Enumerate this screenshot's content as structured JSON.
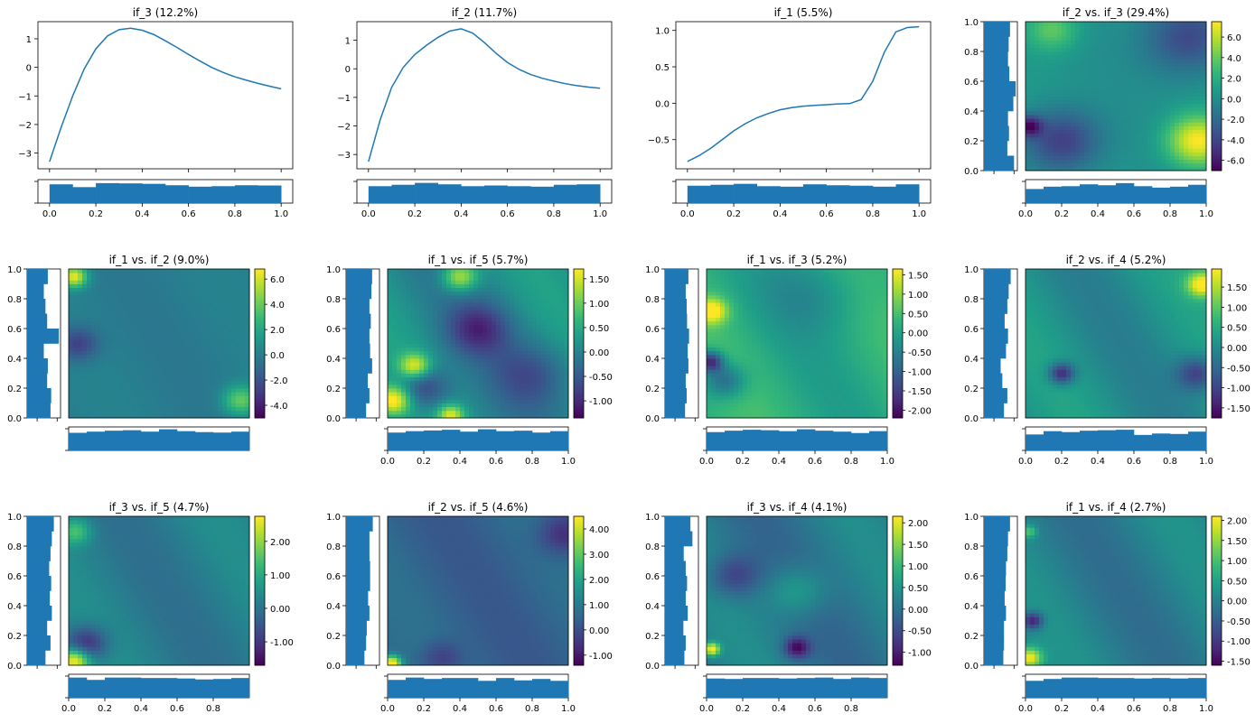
{
  "figure": {
    "colormap": "viridis",
    "hist_color": "#1f77b4",
    "line_color": "#1f77b4"
  },
  "chart_data": [
    {
      "type": "line",
      "title": "if_3 (12.2%)",
      "x": [
        0,
        0.05,
        0.1,
        0.15,
        0.2,
        0.25,
        0.3,
        0.35,
        0.4,
        0.45,
        0.5,
        0.55,
        0.6,
        0.65,
        0.7,
        0.75,
        0.8,
        0.85,
        0.9,
        0.95,
        1.0
      ],
      "y": [
        -3.3,
        -2.1,
        -1.0,
        -0.05,
        0.65,
        1.1,
        1.32,
        1.37,
        1.3,
        1.15,
        0.93,
        0.7,
        0.45,
        0.22,
        0.0,
        -0.18,
        -0.33,
        -0.45,
        -0.56,
        -0.66,
        -0.75
      ],
      "xlim": [
        -0.05,
        1.05
      ],
      "ylim": [
        -3.55,
        1.6
      ],
      "xticks": [
        "0.0",
        "0.2",
        "0.4",
        "0.6",
        "0.8",
        "1.0"
      ],
      "xtick_values": [
        0,
        0.2,
        0.4,
        0.6,
        0.8,
        1.0
      ],
      "yticks": [
        "−3",
        "−2",
        "−1",
        "0",
        "1"
      ],
      "ytick_values": [
        -3,
        -2,
        -1,
        0,
        1
      ],
      "hist": [
        0.8,
        0.68,
        0.85,
        0.84,
        0.82,
        0.76,
        0.7,
        0.72,
        0.76,
        0.75
      ]
    },
    {
      "type": "line",
      "title": "if_2 (11.7%)",
      "x": [
        0,
        0.05,
        0.1,
        0.15,
        0.2,
        0.25,
        0.3,
        0.35,
        0.4,
        0.45,
        0.5,
        0.55,
        0.6,
        0.65,
        0.7,
        0.75,
        0.8,
        0.85,
        0.9,
        0.95,
        1.0
      ],
      "y": [
        -3.25,
        -1.8,
        -0.65,
        0.05,
        0.5,
        0.82,
        1.1,
        1.32,
        1.4,
        1.25,
        0.92,
        0.55,
        0.22,
        -0.02,
        -0.2,
        -0.33,
        -0.43,
        -0.52,
        -0.59,
        -0.64,
        -0.68
      ],
      "xlim": [
        -0.05,
        1.05
      ],
      "ylim": [
        -3.5,
        1.65
      ],
      "xticks": [
        "0.0",
        "0.2",
        "0.4",
        "0.6",
        "0.8",
        "1.0"
      ],
      "xtick_values": [
        0,
        0.2,
        0.4,
        0.6,
        0.8,
        1.0
      ],
      "yticks": [
        "−3",
        "−2",
        "−1",
        "0",
        "1"
      ],
      "ytick_values": [
        -3,
        -2,
        -1,
        0,
        1
      ],
      "hist": [
        0.72,
        0.78,
        0.86,
        0.8,
        0.72,
        0.75,
        0.72,
        0.7,
        0.78,
        0.8
      ]
    },
    {
      "type": "line",
      "title": "if_1 (5.5%)",
      "x": [
        0,
        0.05,
        0.1,
        0.15,
        0.2,
        0.25,
        0.3,
        0.35,
        0.4,
        0.45,
        0.5,
        0.55,
        0.6,
        0.65,
        0.7,
        0.75,
        0.8,
        0.85,
        0.9,
        0.95,
        1.0
      ],
      "y": [
        -0.8,
        -0.72,
        -0.62,
        -0.5,
        -0.38,
        -0.28,
        -0.2,
        -0.14,
        -0.09,
        -0.06,
        -0.04,
        -0.03,
        -0.02,
        -0.01,
        -0.005,
        0.05,
        0.3,
        0.7,
        0.98,
        1.04,
        1.05
      ],
      "xlim": [
        -0.05,
        1.05
      ],
      "ylim": [
        -0.9,
        1.12
      ],
      "xticks": [
        "0.0",
        "0.2",
        "0.4",
        "0.6",
        "0.8",
        "1.0"
      ],
      "xtick_values": [
        0,
        0.2,
        0.4,
        0.6,
        0.8,
        1.0
      ],
      "yticks": [
        "−0.5",
        "0.0",
        "0.5",
        "1.0"
      ],
      "ytick_values": [
        -0.5,
        0,
        0.5,
        1.0
      ],
      "hist": [
        0.74,
        0.78,
        0.82,
        0.72,
        0.7,
        0.8,
        0.76,
        0.74,
        0.7,
        0.8
      ]
    },
    {
      "type": "heatmap",
      "title": "if_2 vs. if_3 (29.4%)",
      "colorbar_ticks": [
        "-6.0",
        "-4.0",
        "-2.0",
        "0.0",
        "2.0",
        "4.0",
        "6.0"
      ],
      "colorbar_values": [
        -6,
        -4,
        -2,
        0,
        2,
        4,
        6
      ],
      "colorbar_range": [
        -7.0,
        7.5
      ],
      "xticks": [
        "0.0",
        "0.2",
        "0.4",
        "0.6",
        "0.8",
        "1.0"
      ],
      "yticks": [
        "0.0",
        "0.2",
        "0.4",
        "0.6",
        "0.8",
        "1.0"
      ],
      "hist_x": [
        0.6,
        0.7,
        0.72,
        0.8,
        0.76,
        0.85,
        0.72,
        0.66,
        0.7,
        0.78
      ],
      "hist_y": [
        0.9,
        0.7,
        0.75,
        0.72,
        0.88,
        0.95,
        0.76,
        0.72,
        0.74,
        0.78
      ],
      "features": [
        {
          "x": 0.95,
          "y": 0.2,
          "s": 0.12,
          "a": 7.0
        },
        {
          "x": 0.15,
          "y": 0.95,
          "s": 0.1,
          "a": 3.5
        },
        {
          "x": 0.2,
          "y": 0.2,
          "s": 0.15,
          "a": -5.0
        },
        {
          "x": 0.9,
          "y": 0.9,
          "s": 0.18,
          "a": -4.5
        },
        {
          "x": 0.02,
          "y": 0.3,
          "s": 0.05,
          "a": -6.0
        }
      ],
      "base": 0.5
    },
    {
      "type": "heatmap",
      "title": "if_1 vs. if_2 (9.0%)",
      "colorbar_ticks": [
        "-4.0",
        "-2.0",
        "0.0",
        "2.0",
        "4.0",
        "6.0"
      ],
      "colorbar_values": [
        -4,
        -2,
        0,
        2,
        4,
        6
      ],
      "colorbar_range": [
        -5.0,
        6.8
      ],
      "xticks": [],
      "yticks": [
        "0.0",
        "0.2",
        "0.4",
        "0.6",
        "0.8",
        "1.0"
      ],
      "hist_x": [
        0.75,
        0.8,
        0.84,
        0.86,
        0.8,
        0.9,
        0.82,
        0.78,
        0.76,
        0.8
      ],
      "hist_y": [
        0.7,
        0.72,
        0.6,
        0.62,
        0.5,
        0.95,
        0.6,
        0.55,
        0.5,
        0.62
      ],
      "features": [
        {
          "x": 0.03,
          "y": 0.95,
          "s": 0.05,
          "a": 6.5
        },
        {
          "x": 0.95,
          "y": 0.12,
          "s": 0.07,
          "a": 4.0
        },
        {
          "x": 0.05,
          "y": 0.5,
          "s": 0.08,
          "a": -3.0
        }
      ],
      "base": 0.0
    },
    {
      "type": "heatmap",
      "title": "if_1 vs. if_5 (5.7%)",
      "colorbar_ticks": [
        "-1.00",
        "-0.50",
        "0.00",
        "0.50",
        "1.00",
        "1.50"
      ],
      "colorbar_values": [
        -1,
        -0.5,
        0,
        0.5,
        1,
        1.5
      ],
      "colorbar_range": [
        -1.35,
        1.7
      ],
      "xticks": [
        "0.0",
        "0.2",
        "0.4",
        "0.6",
        "0.8",
        "1.0"
      ],
      "yticks": [
        "0.0",
        "0.2",
        "0.4",
        "0.6",
        "0.8",
        "1.0"
      ],
      "hist_x": [
        0.76,
        0.82,
        0.85,
        0.88,
        0.8,
        0.9,
        0.82,
        0.84,
        0.76,
        0.82
      ],
      "hist_y": [
        0.6,
        0.7,
        0.65,
        0.78,
        0.72,
        0.7,
        0.74,
        0.7,
        0.76,
        0.78
      ],
      "features": [
        {
          "x": 0.03,
          "y": 0.12,
          "s": 0.07,
          "a": 1.7
        },
        {
          "x": 0.15,
          "y": 0.35,
          "s": 0.06,
          "a": 1.4
        },
        {
          "x": 0.4,
          "y": 0.95,
          "s": 0.07,
          "a": 1.4
        },
        {
          "x": 0.35,
          "y": 0.02,
          "s": 0.05,
          "a": 1.3
        },
        {
          "x": 0.2,
          "y": 0.2,
          "s": 0.1,
          "a": -1.0
        },
        {
          "x": 0.5,
          "y": 0.6,
          "s": 0.12,
          "a": -0.9
        },
        {
          "x": 0.8,
          "y": 0.3,
          "s": 0.15,
          "a": -0.6
        }
      ],
      "base": 0.1
    },
    {
      "type": "heatmap",
      "title": "if_1 vs. if_3 (5.2%)",
      "colorbar_ticks": [
        "-2.00",
        "-1.50",
        "-1.00",
        "-0.50",
        "0.00",
        "0.50",
        "1.00",
        "1.50"
      ],
      "colorbar_values": [
        -2,
        -1.5,
        -1,
        -0.5,
        0,
        0.5,
        1,
        1.5
      ],
      "colorbar_range": [
        -2.2,
        1.65
      ],
      "xticks": [
        "0.0",
        "0.2",
        "0.4",
        "0.6",
        "0.8",
        "1.0"
      ],
      "yticks": [
        "0.0",
        "0.2",
        "0.4",
        "0.6",
        "0.8",
        "1.0"
      ],
      "hist_x": [
        0.78,
        0.84,
        0.88,
        0.86,
        0.82,
        0.9,
        0.84,
        0.8,
        0.74,
        0.82
      ],
      "hist_y": [
        0.6,
        0.65,
        0.62,
        0.7,
        0.68,
        0.72,
        0.66,
        0.65,
        0.62,
        0.7
      ],
      "features": [
        {
          "x": 0.03,
          "y": 0.72,
          "s": 0.06,
          "a": 1.6
        },
        {
          "x": 0.02,
          "y": 0.38,
          "s": 0.05,
          "a": -2.1
        },
        {
          "x": 0.1,
          "y": 0.25,
          "s": 0.08,
          "a": -1.2
        },
        {
          "x": 0.6,
          "y": 0.85,
          "s": 0.2,
          "a": -0.5
        }
      ],
      "base": 0.2
    },
    {
      "type": "heatmap",
      "title": "if_2 vs. if_4 (5.2%)",
      "colorbar_ticks": [
        "-1.50",
        "-1.00",
        "-0.50",
        "0.00",
        "0.50",
        "1.00",
        "1.50"
      ],
      "colorbar_values": [
        -1.5,
        -1,
        -0.5,
        0,
        0.5,
        1,
        1.5
      ],
      "colorbar_range": [
        -1.75,
        1.95
      ],
      "xticks": [
        "0.0",
        "0.2",
        "0.4",
        "0.6",
        "0.8",
        "1.0"
      ],
      "yticks": [
        "0.0",
        "0.2",
        "0.4",
        "0.6",
        "0.8",
        "1.0"
      ],
      "hist_x": [
        0.68,
        0.82,
        0.78,
        0.84,
        0.86,
        0.88,
        0.66,
        0.72,
        0.7,
        0.8
      ],
      "hist_y": [
        0.6,
        0.7,
        0.55,
        0.5,
        0.66,
        0.72,
        0.62,
        0.7,
        0.74,
        0.8
      ],
      "features": [
        {
          "x": 0.98,
          "y": 0.9,
          "s": 0.06,
          "a": 1.9
        },
        {
          "x": 0.2,
          "y": 0.3,
          "s": 0.05,
          "a": -1.6
        },
        {
          "x": 0.95,
          "y": 0.3,
          "s": 0.08,
          "a": -1.2
        }
      ],
      "base": 0.1
    },
    {
      "type": "heatmap",
      "title": "if_3 vs. if_5 (4.7%)",
      "colorbar_ticks": [
        "-1.00",
        "0.00",
        "1.00",
        "2.00"
      ],
      "colorbar_values": [
        -1,
        0,
        1,
        2
      ],
      "colorbar_range": [
        -1.7,
        2.75
      ],
      "xticks": [
        "0.0",
        "0.2",
        "0.4",
        "0.6",
        "0.8"
      ],
      "yticks": [
        "0.0",
        "0.2",
        "0.4",
        "0.6",
        "0.8",
        "1.0"
      ],
      "hist_x": [
        0.86,
        0.76,
        0.86,
        0.86,
        0.84,
        0.84,
        0.82,
        0.78,
        0.8,
        0.84
      ],
      "hist_y": [
        0.55,
        0.7,
        0.6,
        0.74,
        0.68,
        0.72,
        0.66,
        0.7,
        0.74,
        0.8
      ],
      "features": [
        {
          "x": 0.03,
          "y": 0.03,
          "s": 0.06,
          "a": 2.7
        },
        {
          "x": 0.1,
          "y": 0.15,
          "s": 0.08,
          "a": -1.5
        },
        {
          "x": 0.04,
          "y": 0.9,
          "s": 0.06,
          "a": 1.2
        }
      ],
      "base": 0.2
    },
    {
      "type": "heatmap",
      "title": "if_2 vs. if_5 (4.6%)",
      "colorbar_ticks": [
        "-1.00",
        "0.00",
        "1.00",
        "2.00",
        "3.00",
        "4.00"
      ],
      "colorbar_values": [
        -1,
        0,
        1,
        2,
        3,
        4
      ],
      "colorbar_range": [
        -1.4,
        4.5
      ],
      "xticks": [
        "0.0",
        "0.2",
        "0.4",
        "0.6",
        "0.8",
        "1.0"
      ],
      "yticks": [
        "0.0",
        "0.2",
        "0.4",
        "0.6",
        "0.8",
        "1.0"
      ],
      "hist_x": [
        0.76,
        0.86,
        0.8,
        0.84,
        0.84,
        0.72,
        0.84,
        0.74,
        0.8,
        0.72
      ],
      "hist_y": [
        0.55,
        0.6,
        0.62,
        0.7,
        0.66,
        0.72,
        0.72,
        0.7,
        0.7,
        0.8
      ],
      "features": [
        {
          "x": 0.02,
          "y": 0.01,
          "s": 0.04,
          "a": 4.5
        },
        {
          "x": 0.97,
          "y": 0.88,
          "s": 0.1,
          "a": -1.3
        },
        {
          "x": 0.3,
          "y": 0.05,
          "s": 0.08,
          "a": -1.0
        }
      ],
      "base": 0.5
    },
    {
      "type": "heatmap",
      "title": "if_3 vs. if_4 (4.1%)",
      "colorbar_ticks": [
        "-1.00",
        "-0.50",
        "0.00",
        "0.50",
        "1.00",
        "1.50",
        "2.00"
      ],
      "colorbar_values": [
        -1,
        -0.5,
        0,
        0.5,
        1,
        1.5,
        2
      ],
      "colorbar_range": [
        -1.3,
        2.15
      ],
      "xticks": [
        "0.0",
        "0.2",
        "0.4",
        "0.6",
        "0.8"
      ],
      "yticks": [
        "0.0",
        "0.2",
        "0.4",
        "0.6",
        "0.8",
        "1.0"
      ],
      "hist_x": [
        0.82,
        0.8,
        0.84,
        0.84,
        0.82,
        0.84,
        0.86,
        0.8,
        0.86,
        0.84
      ],
      "hist_y": [
        0.58,
        0.62,
        0.55,
        0.68,
        0.62,
        0.66,
        0.62,
        0.56,
        0.82,
        0.76
      ],
      "features": [
        {
          "x": 0.03,
          "y": 0.11,
          "s": 0.03,
          "a": 2.1
        },
        {
          "x": 0.5,
          "y": 0.12,
          "s": 0.05,
          "a": -1.3
        },
        {
          "x": 0.15,
          "y": 0.6,
          "s": 0.1,
          "a": -0.8
        },
        {
          "x": 0.5,
          "y": 0.5,
          "s": 0.12,
          "a": 0.7
        }
      ],
      "base": 0.1
    },
    {
      "type": "heatmap",
      "title": "if_1 vs. if_4 (2.7%)",
      "colorbar_ticks": [
        "-1.50",
        "-1.00",
        "-0.50",
        "0.00",
        "0.50",
        "1.00",
        "1.50",
        "2.00"
      ],
      "colorbar_values": [
        -1.5,
        -1,
        -0.5,
        0,
        0.5,
        1,
        1.5,
        2
      ],
      "colorbar_range": [
        -1.6,
        2.1
      ],
      "xticks": [
        "0.0",
        "0.2",
        "0.4",
        "0.6",
        "0.8",
        "1.0"
      ],
      "yticks": [
        "0.0",
        "0.2",
        "0.4",
        "0.6",
        "0.8",
        "1.0"
      ],
      "hist_x": [
        0.72,
        0.8,
        0.86,
        0.86,
        0.84,
        0.84,
        0.82,
        0.84,
        0.82,
        0.84
      ],
      "hist_y": [
        0.58,
        0.6,
        0.6,
        0.66,
        0.62,
        0.65,
        0.66,
        0.7,
        0.72,
        0.78
      ],
      "features": [
        {
          "x": 0.02,
          "y": 0.05,
          "s": 0.05,
          "a": 2.0
        },
        {
          "x": 0.04,
          "y": 0.3,
          "s": 0.04,
          "a": -1.5
        },
        {
          "x": 0.02,
          "y": 0.9,
          "s": 0.03,
          "a": 1.0
        }
      ],
      "base": 0.0
    }
  ]
}
